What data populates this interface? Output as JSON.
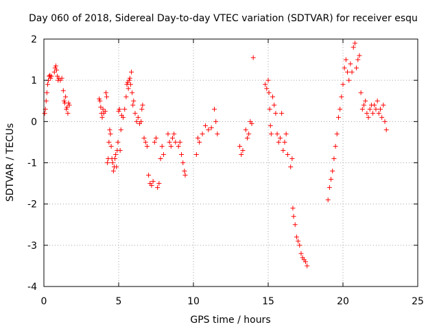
{
  "chart_data": {
    "type": "scatter",
    "title": "Day 060 of 2018, Sidereal Day-to-day VTEC variation (SDTVAR) for receiver esqu",
    "xlabel": "GPS time / hours",
    "ylabel": "SDTVAR / TECUs",
    "xlim": [
      0,
      25
    ],
    "ylim": [
      -4,
      2
    ],
    "xticks": [
      0,
      5,
      10,
      15,
      20,
      25
    ],
    "xtick_labels": [
      "0",
      "5",
      "10",
      "15",
      "20",
      "25"
    ],
    "yticks": [
      -4,
      -3,
      -2,
      -1,
      0,
      1,
      2
    ],
    "ytick_labels": [
      "-4",
      "-3",
      "-2",
      "-1",
      "0",
      "1",
      "2"
    ],
    "grid": true,
    "marker": "+",
    "color": "#ff0000",
    "series": [
      {
        "name": "SDTVAR",
        "points": [
          [
            0.05,
            0.2
          ],
          [
            0.1,
            0.3
          ],
          [
            0.15,
            0.5
          ],
          [
            0.2,
            0.7
          ],
          [
            0.25,
            0.9
          ],
          [
            0.3,
            1.0
          ],
          [
            0.35,
            1.1
          ],
          [
            0.4,
            1.12
          ],
          [
            0.45,
            1.05
          ],
          [
            0.5,
            1.1
          ],
          [
            0.7,
            1.2
          ],
          [
            0.75,
            1.3
          ],
          [
            0.8,
            1.35
          ],
          [
            0.85,
            1.25
          ],
          [
            0.9,
            1.1
          ],
          [
            0.95,
            1.0
          ],
          [
            1.0,
            1.05
          ],
          [
            1.1,
            1.0
          ],
          [
            1.2,
            1.05
          ],
          [
            1.3,
            0.75
          ],
          [
            1.35,
            0.5
          ],
          [
            1.4,
            0.45
          ],
          [
            1.45,
            0.6
          ],
          [
            1.5,
            0.3
          ],
          [
            1.55,
            0.35
          ],
          [
            1.6,
            0.2
          ],
          [
            1.65,
            0.45
          ],
          [
            1.7,
            0.4
          ],
          [
            3.7,
            0.55
          ],
          [
            3.75,
            0.5
          ],
          [
            3.8,
            0.35
          ],
          [
            3.85,
            0.2
          ],
          [
            3.9,
            0.1
          ],
          [
            3.95,
            0.3
          ],
          [
            4.0,
            0.2
          ],
          [
            4.1,
            0.25
          ],
          [
            4.15,
            0.7
          ],
          [
            4.2,
            0.6
          ],
          [
            4.25,
            -1.0
          ],
          [
            4.3,
            -0.9
          ],
          [
            4.35,
            -0.5
          ],
          [
            4.4,
            -0.2
          ],
          [
            4.45,
            -0.3
          ],
          [
            4.5,
            -0.6
          ],
          [
            4.55,
            -0.9
          ],
          [
            4.6,
            -1.0
          ],
          [
            4.65,
            -1.2
          ],
          [
            4.7,
            -1.1
          ],
          [
            4.75,
            -0.9
          ],
          [
            4.8,
            -0.8
          ],
          [
            4.85,
            -1.1
          ],
          [
            4.9,
            -0.7
          ],
          [
            4.95,
            -0.5
          ],
          [
            5.0,
            0.25
          ],
          [
            5.05,
            0.3
          ],
          [
            5.1,
            -0.7
          ],
          [
            5.15,
            -0.2
          ],
          [
            5.2,
            0.15
          ],
          [
            5.3,
            0.1
          ],
          [
            5.4,
            0.3
          ],
          [
            5.5,
            0.6
          ],
          [
            5.55,
            0.9
          ],
          [
            5.6,
            0.95
          ],
          [
            5.65,
            0.8
          ],
          [
            5.7,
            1.0
          ],
          [
            5.75,
            1.05
          ],
          [
            5.8,
            0.9
          ],
          [
            5.85,
            1.2
          ],
          [
            5.9,
            0.7
          ],
          [
            5.95,
            0.4
          ],
          [
            6.0,
            0.5
          ],
          [
            6.1,
            0.2
          ],
          [
            6.2,
            0.0
          ],
          [
            6.3,
            0.1
          ],
          [
            6.4,
            -0.05
          ],
          [
            6.5,
            0.0
          ],
          [
            6.55,
            0.3
          ],
          [
            6.6,
            0.4
          ],
          [
            6.7,
            -0.4
          ],
          [
            6.8,
            -0.5
          ],
          [
            6.9,
            -0.6
          ],
          [
            7.0,
            -1.3
          ],
          [
            7.1,
            -1.5
          ],
          [
            7.2,
            -1.55
          ],
          [
            7.3,
            -1.45
          ],
          [
            7.4,
            -0.5
          ],
          [
            7.5,
            -0.4
          ],
          [
            7.6,
            -1.6
          ],
          [
            7.7,
            -1.5
          ],
          [
            7.8,
            -0.9
          ],
          [
            7.9,
            -0.6
          ],
          [
            8.0,
            -0.8
          ],
          [
            8.3,
            -0.3
          ],
          [
            8.4,
            -0.5
          ],
          [
            8.5,
            -0.6
          ],
          [
            8.6,
            -0.4
          ],
          [
            8.7,
            -0.3
          ],
          [
            8.8,
            -0.5
          ],
          [
            9.0,
            -0.6
          ],
          [
            9.1,
            -0.5
          ],
          [
            9.2,
            -0.8
          ],
          [
            9.3,
            -1.0
          ],
          [
            9.4,
            -1.2
          ],
          [
            9.45,
            -1.3
          ],
          [
            10.2,
            -0.8
          ],
          [
            10.3,
            -0.4
          ],
          [
            10.4,
            -0.5
          ],
          [
            10.6,
            -0.3
          ],
          [
            10.8,
            -0.1
          ],
          [
            11.0,
            -0.2
          ],
          [
            11.2,
            -0.15
          ],
          [
            11.4,
            0.3
          ],
          [
            11.5,
            0.0
          ],
          [
            11.6,
            -0.3
          ],
          [
            13.1,
            -0.6
          ],
          [
            13.2,
            -0.8
          ],
          [
            13.3,
            -0.7
          ],
          [
            13.5,
            -0.2
          ],
          [
            13.6,
            -0.4
          ],
          [
            13.7,
            -0.3
          ],
          [
            13.8,
            0.0
          ],
          [
            13.9,
            -0.05
          ],
          [
            14.0,
            1.55
          ],
          [
            14.8,
            0.9
          ],
          [
            14.9,
            0.8
          ],
          [
            15.0,
            1.0
          ],
          [
            15.05,
            0.7
          ],
          [
            15.1,
            0.3
          ],
          [
            15.15,
            -0.1
          ],
          [
            15.2,
            -0.3
          ],
          [
            15.3,
            0.6
          ],
          [
            15.4,
            0.4
          ],
          [
            15.5,
            0.2
          ],
          [
            15.6,
            -0.3
          ],
          [
            15.7,
            -0.5
          ],
          [
            15.8,
            -0.4
          ],
          [
            15.9,
            0.2
          ],
          [
            16.0,
            -0.7
          ],
          [
            16.1,
            -0.5
          ],
          [
            16.2,
            -0.3
          ],
          [
            16.3,
            -0.8
          ],
          [
            16.5,
            -1.1
          ],
          [
            16.6,
            -0.9
          ],
          [
            16.65,
            -2.1
          ],
          [
            16.7,
            -2.3
          ],
          [
            16.8,
            -2.5
          ],
          [
            16.9,
            -2.8
          ],
          [
            17.0,
            -2.9
          ],
          [
            17.1,
            -3.0
          ],
          [
            17.2,
            -3.2
          ],
          [
            17.3,
            -3.3
          ],
          [
            17.4,
            -3.35
          ],
          [
            17.5,
            -3.4
          ],
          [
            17.6,
            -3.5
          ],
          [
            19.0,
            -1.9
          ],
          [
            19.1,
            -1.6
          ],
          [
            19.2,
            -1.4
          ],
          [
            19.3,
            -1.2
          ],
          [
            19.4,
            -0.9
          ],
          [
            19.5,
            -0.6
          ],
          [
            19.6,
            -0.3
          ],
          [
            19.7,
            0.1
          ],
          [
            19.8,
            0.3
          ],
          [
            19.9,
            0.6
          ],
          [
            20.0,
            0.9
          ],
          [
            20.1,
            1.3
          ],
          [
            20.2,
            1.5
          ],
          [
            20.3,
            1.2
          ],
          [
            20.4,
            1.0
          ],
          [
            20.5,
            1.4
          ],
          [
            20.6,
            1.2
          ],
          [
            20.7,
            1.8
          ],
          [
            20.8,
            1.9
          ],
          [
            20.9,
            1.3
          ],
          [
            21.0,
            1.5
          ],
          [
            21.1,
            1.6
          ],
          [
            21.2,
            0.7
          ],
          [
            21.3,
            0.3
          ],
          [
            21.4,
            0.4
          ],
          [
            21.5,
            0.5
          ],
          [
            21.6,
            0.2
          ],
          [
            21.7,
            0.1
          ],
          [
            21.8,
            0.3
          ],
          [
            21.9,
            0.4
          ],
          [
            22.0,
            0.2
          ],
          [
            22.1,
            0.4
          ],
          [
            22.2,
            0.3
          ],
          [
            22.3,
            0.5
          ],
          [
            22.4,
            0.2
          ],
          [
            22.5,
            0.3
          ],
          [
            22.6,
            0.1
          ],
          [
            22.7,
            0.4
          ],
          [
            22.8,
            0.0
          ],
          [
            22.9,
            -0.2
          ]
        ]
      }
    ]
  }
}
